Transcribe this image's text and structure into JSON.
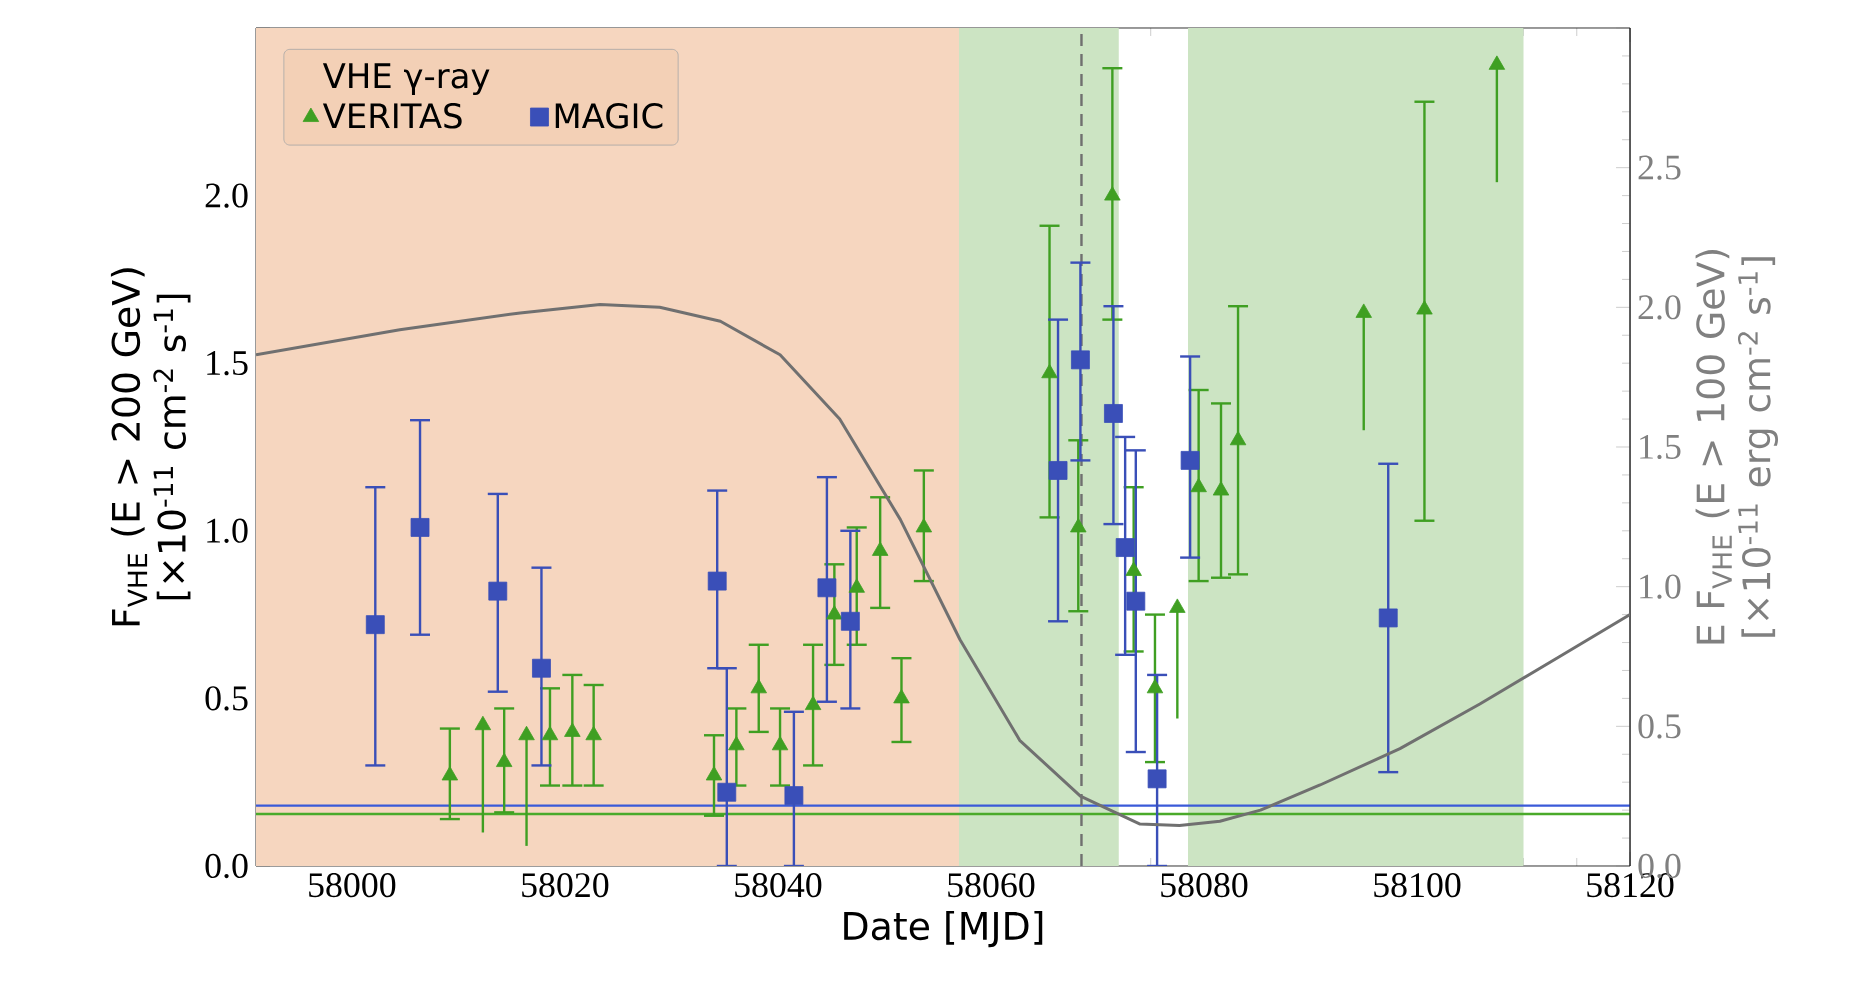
{
  "chart_data": {
    "type": "scatter",
    "xlabel": "Date [MJD]",
    "ylabel": "F$_{VHE}$ (E > 200 GeV) [×10$^{-11}$ cm$^{-2}$ s$^{-1}$]",
    "y2label": "E F$_{VHE}$ (E > 100 GeV) [×10$^{-11}$ erg cm$^{-2}$ s$^{-1}$]",
    "legend_title": "VHE γ-ray",
    "legend": "top left",
    "xlim": [
      57991,
      58120
    ],
    "xticks": [
      58000,
      58020,
      58040,
      58060,
      58080,
      58100,
      58120
    ],
    "ylim": [
      0,
      2.5
    ],
    "yticks": [
      {
        "value": 0,
        "label": "0.0"
      },
      {
        "value": 0.5,
        "label": "0.5"
      },
      {
        "value": 1,
        "label": "1.0"
      },
      {
        "value": 1.5,
        "label": "1.5"
      },
      {
        "value": 2,
        "label": "2.0"
      },
      {
        "value": 2.5,
        "label": null
      }
    ],
    "y2lim": [
      0,
      3
    ],
    "y2ticks": [
      {
        "value": 0,
        "label": "0.0"
      },
      {
        "value": 0.5,
        "label": "0.5"
      },
      {
        "value": 1,
        "label": "1.0"
      },
      {
        "value": 1.5,
        "label": "1.5"
      },
      {
        "value": 2,
        "label": "2.0"
      },
      {
        "value": 2.5,
        "label": "2.5"
      },
      {
        "value": 3,
        "label": null
      }
    ],
    "bands": [
      {
        "axis": "x",
        "from": 57991,
        "to": 58057,
        "color": "#f6d6bf"
      },
      {
        "axis": "x",
        "from": 58057,
        "to": 58072,
        "color": "#cce4c3"
      },
      {
        "axis": "x",
        "from": 58078.5,
        "to": 58110,
        "color": "#cce4c3"
      }
    ],
    "ref_lines": [
      {
        "axis": "y",
        "value": 0.18,
        "color": "#3a5ad8"
      },
      {
        "axis": "y",
        "value": 0.155,
        "color": "#4aaa2a"
      },
      {
        "axis": "x",
        "value": 58068.5,
        "color": "#707070",
        "line_style": "dashed"
      }
    ],
    "series": [
      {
        "name": "VERITAS",
        "marker": "triangle",
        "color": "#3f9f22",
        "x": [
          58009.2,
          58014.3,
          58018.6,
          58020.7,
          58022.7,
          58034.0,
          58036.1,
          58038.2,
          58040.2,
          58043.3,
          58045.3,
          58047.4,
          58049.6,
          58051.6,
          58053.7,
          58065.5,
          58068.2,
          58071.4,
          58073.4,
          58075.4,
          58079.5,
          58081.6,
          58083.2,
          58100.7
        ],
        "values": [
          0.27,
          0.31,
          0.39,
          0.4,
          0.39,
          0.27,
          0.36,
          0.53,
          0.36,
          0.48,
          0.75,
          0.83,
          0.94,
          0.5,
          1.01,
          1.47,
          1.01,
          2.0,
          0.88,
          0.53,
          1.13,
          1.12,
          1.27,
          1.66
        ],
        "errors": [
          [
            0.14,
            0.41
          ],
          [
            0.16,
            0.47
          ],
          [
            0.24,
            0.53
          ],
          [
            0.24,
            0.57
          ],
          [
            0.24,
            0.54
          ],
          [
            0.15,
            0.39
          ],
          [
            0.24,
            0.47
          ],
          [
            0.4,
            0.66
          ],
          [
            0.24,
            0.47
          ],
          [
            0.3,
            0.66
          ],
          [
            0.6,
            0.9
          ],
          [
            0.66,
            1.01
          ],
          [
            0.77,
            1.1
          ],
          [
            0.37,
            0.62
          ],
          [
            0.85,
            1.18
          ],
          [
            1.04,
            1.91
          ],
          [
            0.76,
            1.27
          ],
          [
            1.63,
            2.38
          ],
          [
            0.64,
            1.13
          ],
          [
            0.31,
            0.75
          ],
          [
            0.85,
            1.42
          ],
          [
            0.86,
            1.38
          ],
          [
            0.87,
            1.67
          ],
          [
            1.03,
            2.28
          ]
        ]
      },
      {
        "marker": "triangle",
        "color": "#3f9f22",
        "x": [
          58012.3,
          58016.4,
          58077.5,
          58095.0,
          58107.5
        ],
        "values": [
          0.42,
          0.39,
          0.77,
          1.65,
          2.39
        ],
        "errors": [
          [
            0.1,
            0.42
          ],
          [
            0.06,
            0.39
          ],
          [
            0.44,
            0.77
          ],
          [
            1.3,
            1.65
          ],
          [
            2.04,
            2.39
          ]
        ]
      },
      {
        "name": "MAGIC",
        "marker": "square",
        "color": "#3a4fb8",
        "x": [
          58002.2,
          58006.4,
          58013.7,
          58017.8,
          58034.3,
          58035.2,
          58041.5,
          58044.6,
          58046.8,
          58066.3,
          58068.4,
          58071.5,
          58072.6,
          58073.6,
          58075.6,
          58078.7,
          58097.3
        ],
        "values": [
          0.72,
          1.01,
          0.82,
          0.59,
          0.85,
          0.22,
          0.21,
          0.83,
          0.73,
          1.18,
          1.51,
          1.35,
          0.95,
          0.79,
          0.26,
          1.21,
          0.74
        ],
        "errors": [
          [
            0.3,
            1.13
          ],
          [
            0.69,
            1.33
          ],
          [
            0.52,
            1.11
          ],
          [
            0.3,
            0.89
          ],
          [
            0.59,
            1.12
          ],
          [
            0,
            0.59
          ],
          [
            0,
            0.46
          ],
          [
            0.49,
            1.16
          ],
          [
            0.47,
            1.0
          ],
          [
            0.73,
            1.63
          ],
          [
            1.21,
            1.8
          ],
          [
            1.02,
            1.67
          ],
          [
            0.63,
            1.28
          ],
          [
            0.34,
            1.24
          ],
          [
            0,
            0.57
          ],
          [
            0.92,
            1.52
          ],
          [
            0.28,
            1.2
          ]
        ]
      },
      {
        "type": "line",
        "axis": "y2",
        "color": "#707070",
        "x": [
          57991,
          58004.5,
          58015.8,
          58023.3,
          58028.9,
          58034.6,
          58040.2,
          58045.8,
          58051.5,
          58057.1,
          58062.7,
          58068.4,
          58074.0,
          58077.7,
          58081.5,
          58085.3,
          58090.9,
          58098.4,
          58105.9,
          58113.4,
          58120
        ],
        "values": [
          1.83,
          1.92,
          1.98,
          2.01,
          2.0,
          1.95,
          1.83,
          1.6,
          1.24,
          0.81,
          0.45,
          0.25,
          0.15,
          0.145,
          0.16,
          0.2,
          0.29,
          0.42,
          0.58,
          0.75,
          0.9
        ]
      }
    ]
  }
}
